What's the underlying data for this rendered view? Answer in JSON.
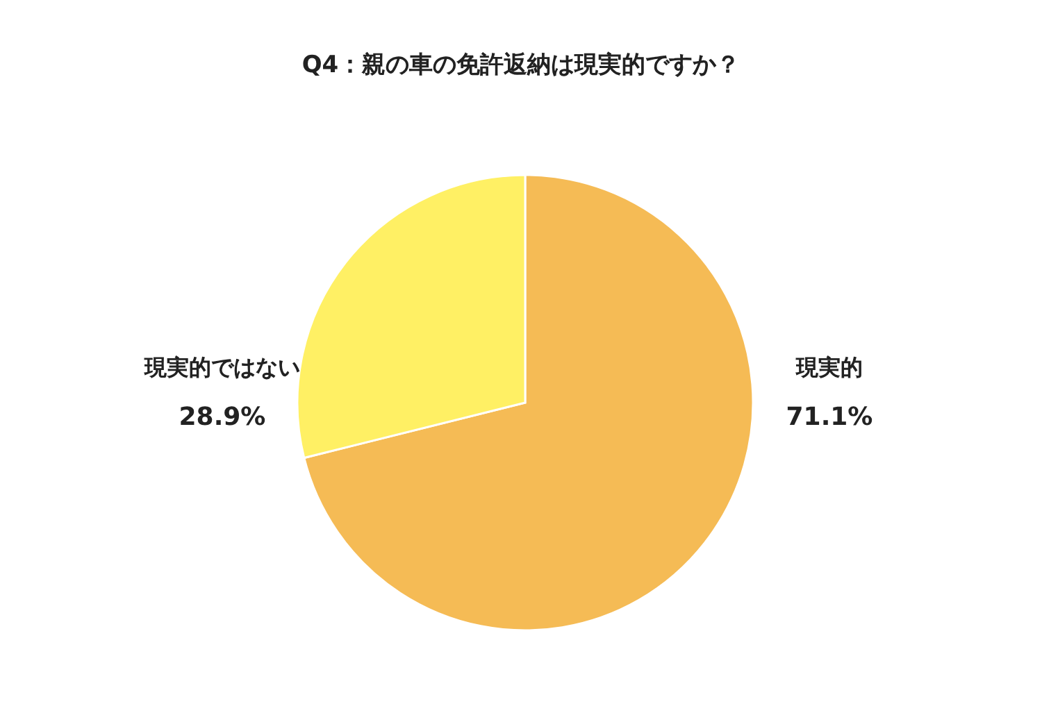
{
  "chart_data": {
    "type": "pie",
    "title": "Q4：親の車の免許返納は現実的ですか？",
    "categories": [
      "現実的",
      "現実的ではない"
    ],
    "values": [
      71.1,
      28.9
    ],
    "colors": [
      "#f5bb55",
      "#fff064"
    ],
    "value_labels": [
      "71.1%",
      "28.9%"
    ]
  }
}
